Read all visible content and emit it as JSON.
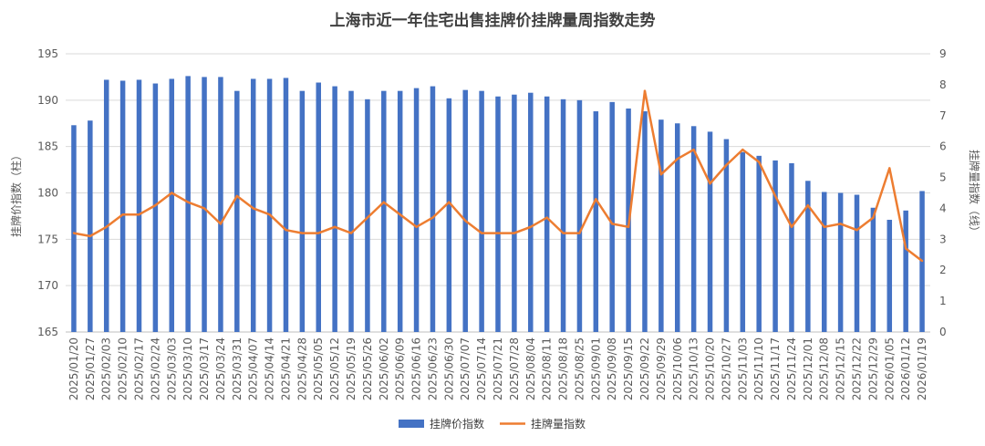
{
  "chart_data": {
    "type": "bar",
    "title": "上海市近一年住宅出售挂牌价挂牌量周指数走势",
    "y_left_label": "挂牌价指数（柱）",
    "y_right_label": "挂牌量指数（线）",
    "ylim_left": [
      165,
      195
    ],
    "yticks_left": [
      "165",
      "170",
      "175",
      "180",
      "185",
      "190",
      "195"
    ],
    "ylim_right": [
      0,
      9
    ],
    "yticks_right": [
      "0",
      "1",
      "2",
      "3",
      "4",
      "5",
      "6",
      "7",
      "8",
      "9"
    ],
    "grid": true,
    "legend_position": "bottom",
    "colors": {
      "bar": "#4472C4",
      "line": "#ED7D31"
    },
    "categories": [
      "2025/01/20",
      "2025/01/27",
      "2025/02/03",
      "2025/02/10",
      "2025/02/17",
      "2025/02/24",
      "2025/03/03",
      "2025/03/10",
      "2025/03/17",
      "2025/03/24",
      "2025/03/31",
      "2025/04/07",
      "2025/04/14",
      "2025/04/21",
      "2025/04/28",
      "2025/05/05",
      "2025/05/12",
      "2025/05/19",
      "2025/05/26",
      "2025/06/02",
      "2025/06/09",
      "2025/06/16",
      "2025/06/23",
      "2025/06/30",
      "2025/07/07",
      "2025/07/14",
      "2025/07/21",
      "2025/07/28",
      "2025/08/04",
      "2025/08/11",
      "2025/08/18",
      "2025/08/25",
      "2025/09/01",
      "2025/09/08",
      "2025/09/15",
      "2025/09/22",
      "2025/09/29",
      "2025/10/06",
      "2025/10/13",
      "2025/10/20",
      "2025/10/27",
      "2025/11/03",
      "2025/11/10",
      "2025/11/17",
      "2025/11/24",
      "2025/12/01",
      "2025/12/08",
      "2025/12/15",
      "2025/12/22",
      "2025/12/29",
      "2026/01/05",
      "2026/01/12",
      "2026/01/19"
    ],
    "series": [
      {
        "name": "挂牌价指数",
        "type": "bar",
        "axis": "left",
        "values": [
          187.3,
          187.8,
          192.2,
          192.1,
          192.2,
          191.8,
          192.3,
          192.6,
          192.5,
          192.5,
          191.0,
          192.3,
          192.3,
          192.4,
          191.0,
          191.9,
          191.5,
          191.0,
          190.1,
          191.0,
          191.0,
          191.3,
          191.5,
          190.2,
          191.1,
          191.0,
          190.4,
          190.6,
          190.8,
          190.4,
          190.1,
          190.0,
          188.8,
          189.8,
          189.1,
          188.8,
          187.9,
          187.5,
          187.2,
          186.6,
          185.8,
          184.4,
          184.0,
          183.5,
          183.2,
          181.3,
          180.1,
          180.0,
          179.8,
          178.4,
          177.1,
          178.1,
          180.2
        ]
      },
      {
        "name": "挂牌量指数",
        "type": "line",
        "axis": "right",
        "values": [
          3.2,
          3.1,
          3.4,
          3.8,
          3.8,
          4.1,
          4.5,
          4.2,
          4.0,
          3.5,
          4.4,
          4.0,
          3.8,
          3.3,
          3.2,
          3.2,
          3.4,
          3.2,
          3.7,
          4.2,
          3.8,
          3.4,
          3.7,
          4.2,
          3.6,
          3.2,
          3.2,
          3.2,
          3.4,
          3.7,
          3.2,
          3.2,
          4.3,
          3.5,
          3.4,
          7.8,
          5.1,
          5.6,
          5.9,
          4.8,
          5.4,
          5.9,
          5.5,
          4.4,
          3.4,
          4.1,
          3.4,
          3.5,
          3.3,
          3.7,
          5.3,
          2.7,
          2.3
        ]
      }
    ]
  }
}
